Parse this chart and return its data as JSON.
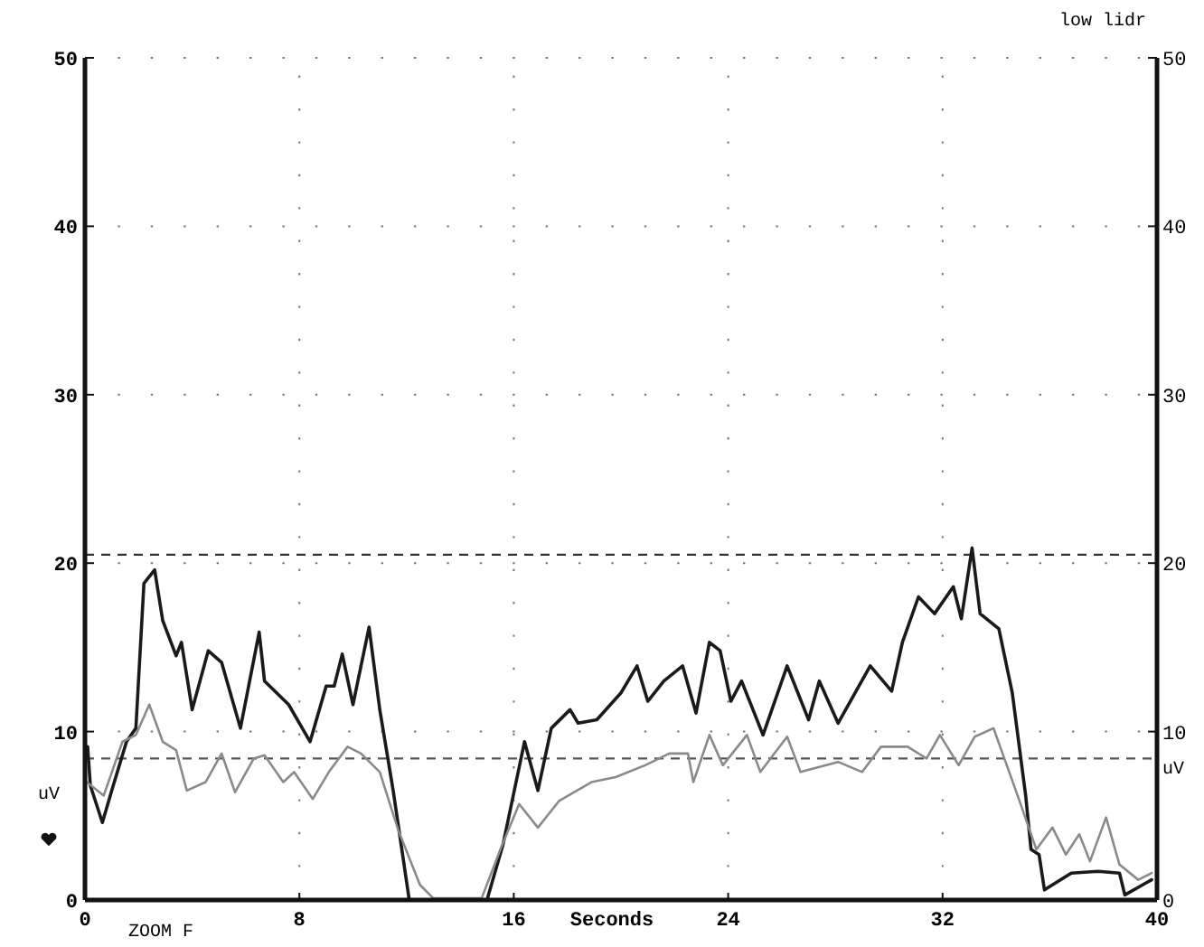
{
  "chart_data": {
    "type": "line",
    "xlabel": "Seconds",
    "ylabel": "uV",
    "y2label": "uV",
    "annotations": [
      "low lidr",
      "ZOOM F"
    ],
    "xlim": [
      0,
      40
    ],
    "xticks": [
      0,
      8,
      16,
      24,
      32,
      40
    ],
    "ylim": [
      0,
      50
    ],
    "yticks": [
      0,
      10,
      20,
      30,
      40,
      50
    ],
    "y2lim": [
      0,
      50
    ],
    "y2ticks": [
      0,
      10,
      20,
      30,
      40,
      50
    ],
    "grid": true,
    "line_style": "solid",
    "ref_lines": [
      {
        "axis": "y",
        "value": 20.5,
        "color": "#333333",
        "line_style": "dashed"
      },
      {
        "axis": "y",
        "value": 8.4,
        "color": "#555555",
        "line_style": "dashed"
      }
    ],
    "series": [
      {
        "color": "#1a1a1a",
        "x": [
          0.1,
          0.2,
          0.65,
          1.0,
          1.55,
          1.9,
          2.2,
          2.6,
          2.9,
          3.4,
          3.6,
          4.0,
          4.6,
          5.1,
          5.8,
          6.5,
          6.7,
          7.6,
          8.4,
          9.0,
          9.3,
          9.6,
          10.0,
          10.6,
          11.0,
          11.5,
          12.1,
          15.0,
          15.6,
          16.4,
          16.9,
          17.4,
          18.1,
          18.4,
          19.1,
          20.0,
          20.6,
          21.0,
          21.6,
          22.3,
          22.8,
          23.3,
          23.7,
          24.1,
          24.5,
          25.3,
          26.2,
          27.0,
          27.4,
          28.1,
          29.3,
          30.1,
          30.5,
          31.1,
          31.7,
          32.4,
          32.7,
          33.1,
          33.4,
          34.1,
          34.6,
          35.1,
          35.3,
          35.6,
          35.8,
          36.8,
          37.8,
          38.6,
          38.8,
          39.8
        ],
        "values": [
          9.1,
          6.8,
          4.6,
          6.5,
          9.4,
          10.2,
          18.8,
          19.6,
          16.6,
          14.5,
          15.3,
          11.3,
          14.8,
          14.1,
          10.2,
          15.9,
          13.0,
          11.6,
          9.4,
          12.7,
          12.7,
          14.6,
          11.6,
          16.2,
          11.3,
          6.5,
          0,
          0,
          3.3,
          9.4,
          6.5,
          10.2,
          11.3,
          10.5,
          10.7,
          12.3,
          13.9,
          11.8,
          13.0,
          13.9,
          11.1,
          15.3,
          14.8,
          11.8,
          13.0,
          9.8,
          13.9,
          10.7,
          13.0,
          10.5,
          13.9,
          12.4,
          15.3,
          18.0,
          17.0,
          18.6,
          16.7,
          20.9,
          17.0,
          16.1,
          12.3,
          6.2,
          3.0,
          2.7,
          0.6,
          1.6,
          1.7,
          1.6,
          0.3,
          1.2
        ]
      },
      {
        "color": "#8a8a8a",
        "x": [
          0.07,
          0.7,
          1.4,
          1.9,
          2.4,
          2.9,
          3.4,
          3.8,
          4.5,
          5.1,
          5.6,
          6.3,
          6.7,
          7.4,
          7.8,
          8.5,
          9.1,
          9.8,
          10.3,
          11.0,
          11.7,
          12.5,
          13.0,
          14.8,
          15.5,
          16.2,
          16.9,
          17.7,
          18.9,
          19.8,
          20.9,
          21.8,
          22.5,
          22.7,
          23.3,
          23.8,
          24.7,
          25.2,
          26.2,
          26.7,
          28.1,
          29.0,
          29.7,
          30.7,
          31.4,
          31.9,
          32.6,
          33.2,
          33.9,
          34.8,
          35.5,
          36.1,
          36.6,
          37.1,
          37.5,
          38.1,
          38.6,
          39.3,
          39.8
        ],
        "values": [
          7.0,
          6.2,
          9.4,
          9.8,
          11.6,
          9.4,
          8.9,
          6.5,
          7.0,
          8.7,
          6.4,
          8.4,
          8.6,
          7.0,
          7.6,
          6.0,
          7.6,
          9.1,
          8.7,
          7.6,
          4.1,
          0.9,
          0.1,
          0.1,
          3.0,
          5.7,
          4.3,
          5.9,
          7.0,
          7.3,
          8.0,
          8.7,
          8.7,
          7.0,
          9.8,
          8.0,
          9.8,
          7.6,
          9.7,
          7.6,
          8.2,
          7.6,
          9.1,
          9.1,
          8.4,
          9.8,
          8.0,
          9.7,
          10.2,
          6.2,
          3.0,
          4.3,
          2.7,
          3.9,
          2.3,
          4.9,
          2.1,
          1.2,
          1.6
        ]
      }
    ]
  }
}
